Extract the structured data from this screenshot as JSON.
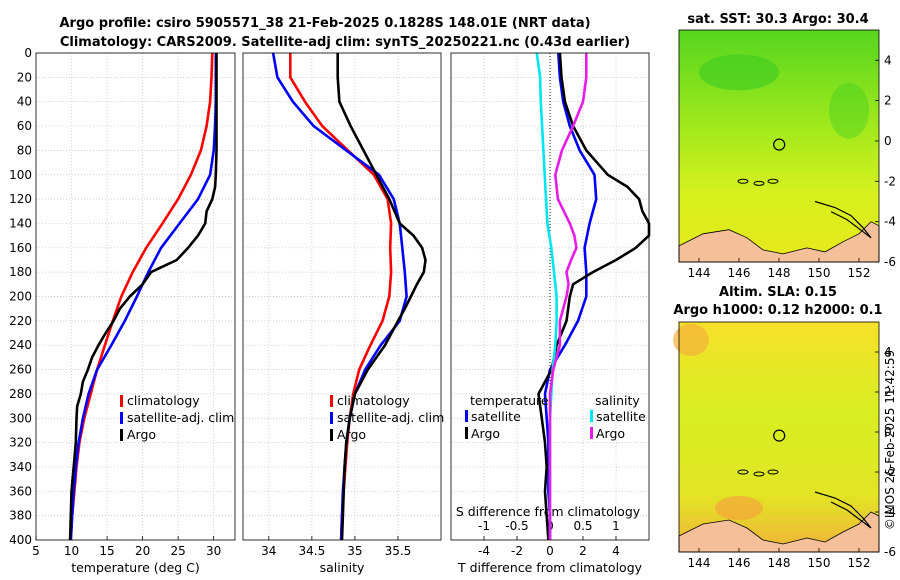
{
  "title": {
    "line1": "Argo profile: csiro 5905571_38 21-Feb-2025 0.1828S 148.01E (NRT data)",
    "line2": "Climatology: CARS2009. Satellite-adj clim: synTS_20250221.nc (0.43d earlier)"
  },
  "colors": {
    "climatology": "#ff0000",
    "satellite": "#0000ff",
    "argo": "#000000",
    "salinity_sat": "#00e5f2",
    "salinity_argo": "#e81ce8",
    "land": "#f5bf9a"
  },
  "chart_data": [
    {
      "id": "temperature",
      "type": "line",
      "xlabel": "temperature (deg C)",
      "ylabel": "",
      "xlim": [
        5,
        33
      ],
      "ylim": [
        400,
        0
      ],
      "xticks": [
        5,
        10,
        15,
        20,
        25,
        30
      ],
      "yticks": [
        0,
        20,
        40,
        60,
        80,
        100,
        120,
        140,
        160,
        180,
        200,
        220,
        240,
        260,
        280,
        300,
        320,
        340,
        360,
        380,
        400
      ],
      "grid": true,
      "legend": {
        "position": "bottom-right",
        "entries": [
          "climatology",
          "satellite-adj. clim",
          "Argo"
        ]
      },
      "series": [
        {
          "name": "climatology",
          "color": "#ff0000",
          "depth": [
            0,
            20,
            40,
            60,
            80,
            100,
            120,
            140,
            160,
            180,
            200,
            220,
            240,
            260,
            280,
            300,
            320,
            340,
            360,
            380,
            400
          ],
          "values": [
            29.8,
            29.7,
            29.5,
            29.0,
            28.2,
            26.8,
            25.0,
            22.8,
            20.5,
            18.6,
            17.0,
            15.8,
            14.7,
            13.6,
            12.7,
            11.8,
            11.1,
            10.7,
            10.4,
            10.1,
            9.9
          ]
        },
        {
          "name": "satellite-adj. clim",
          "color": "#0000ff",
          "depth": [
            0,
            20,
            40,
            60,
            80,
            100,
            120,
            140,
            160,
            180,
            200,
            220,
            240,
            260,
            280,
            300,
            320,
            340,
            360,
            380,
            400
          ],
          "values": [
            30.3,
            30.3,
            30.3,
            30.2,
            30.0,
            29.5,
            27.8,
            25.2,
            22.6,
            20.8,
            19.2,
            17.5,
            15.6,
            13.6,
            12.4,
            11.6,
            11.0,
            10.6,
            10.3,
            10.1,
            9.9
          ]
        },
        {
          "name": "Argo",
          "color": "#000000",
          "depth": [
            0,
            20,
            40,
            60,
            80,
            100,
            110,
            120,
            130,
            140,
            150,
            160,
            170,
            180,
            190,
            200,
            210,
            220,
            230,
            240,
            250,
            260,
            270,
            280,
            290,
            300,
            320,
            340,
            360,
            380,
            400
          ],
          "values": [
            30.4,
            30.4,
            30.4,
            30.4,
            30.4,
            30.3,
            30.2,
            29.8,
            29.0,
            28.8,
            27.8,
            26.4,
            24.8,
            21.2,
            20.0,
            18.2,
            16.8,
            15.9,
            14.8,
            13.8,
            12.9,
            12.3,
            11.6,
            11.3,
            10.8,
            10.7,
            10.6,
            10.3,
            10.0,
            9.9,
            9.8
          ]
        }
      ]
    },
    {
      "id": "salinity",
      "type": "line",
      "xlabel": "salinity",
      "xlim": [
        33.7,
        36.0
      ],
      "ylim": [
        400,
        0
      ],
      "xticks": [
        34,
        34.5,
        35,
        35.5
      ],
      "grid": true,
      "legend": {
        "position": "bottom-right",
        "entries": [
          "climatology",
          "satellite-adj. clim",
          "Argo"
        ]
      },
      "series": [
        {
          "name": "climatology",
          "color": "#ff0000",
          "depth": [
            0,
            20,
            40,
            60,
            80,
            100,
            120,
            140,
            160,
            180,
            200,
            220,
            240,
            260,
            280,
            300,
            320,
            340,
            360,
            380,
            400
          ],
          "values": [
            34.25,
            34.25,
            34.42,
            34.62,
            34.92,
            35.22,
            35.38,
            35.42,
            35.41,
            35.42,
            35.4,
            35.32,
            35.18,
            35.05,
            34.98,
            34.94,
            34.91,
            34.89,
            34.87,
            34.85,
            34.84
          ]
        },
        {
          "name": "satellite-adj. clim",
          "color": "#0000ff",
          "depth": [
            0,
            20,
            40,
            60,
            80,
            100,
            120,
            140,
            160,
            180,
            200,
            220,
            240,
            260,
            280,
            300,
            320,
            340,
            360,
            380,
            400
          ],
          "values": [
            34.05,
            34.1,
            34.28,
            34.52,
            34.9,
            35.28,
            35.45,
            35.52,
            35.55,
            35.58,
            35.6,
            35.52,
            35.3,
            35.12,
            35.0,
            34.94,
            34.9,
            34.88,
            34.86,
            34.85,
            34.84
          ]
        },
        {
          "name": "Argo",
          "color": "#000000",
          "depth": [
            0,
            20,
            40,
            60,
            80,
            100,
            120,
            140,
            150,
            160,
            170,
            180,
            190,
            200,
            210,
            220,
            240,
            260,
            280,
            300,
            320,
            340,
            360,
            380,
            400
          ],
          "values": [
            34.8,
            34.8,
            34.82,
            34.95,
            35.1,
            35.25,
            35.4,
            35.52,
            35.68,
            35.78,
            35.82,
            35.8,
            35.72,
            35.65,
            35.58,
            35.5,
            35.35,
            35.15,
            35.0,
            34.94,
            34.9,
            34.88,
            34.87,
            34.86,
            34.85
          ]
        }
      ]
    },
    {
      "id": "differences",
      "type": "line",
      "xlabel": "T difference from climatology",
      "top_xlabel": "S difference from climatology",
      "xlim": [
        -6,
        6
      ],
      "top_xlim": [
        -1.5,
        1.5
      ],
      "ylim": [
        400,
        0
      ],
      "xticks": [
        -4,
        -2,
        0,
        2,
        4
      ],
      "top_xticks": [
        -1,
        -0.5,
        0,
        0.5,
        1
      ],
      "top_xtick_labels": [
        "-1",
        "-0.5",
        "0",
        "0.5",
        "1"
      ],
      "grid": true,
      "legend": {
        "position": "bottom",
        "headers": [
          "temperature",
          "salinity"
        ],
        "entries": [
          "satellite",
          "Argo",
          "satellite",
          "Argo"
        ]
      },
      "series": [
        {
          "name": "temperature satellite",
          "axis": "T",
          "color": "#0000ff",
          "depth": [
            0,
            20,
            40,
            60,
            80,
            100,
            120,
            140,
            160,
            180,
            200,
            220,
            240,
            260,
            280,
            300,
            320,
            340,
            360,
            380,
            400
          ],
          "values": [
            0.5,
            0.6,
            0.8,
            1.2,
            1.8,
            2.7,
            2.8,
            2.4,
            2.1,
            2.2,
            2.2,
            1.7,
            0.9,
            0.0,
            -0.3,
            -0.2,
            -0.1,
            -0.1,
            -0.1,
            0.0,
            0.0
          ]
        },
        {
          "name": "temperature Argo",
          "axis": "T",
          "color": "#000000",
          "depth": [
            0,
            20,
            40,
            60,
            80,
            100,
            110,
            120,
            130,
            140,
            150,
            160,
            170,
            180,
            190,
            200,
            220,
            240,
            260,
            280,
            300,
            320,
            340,
            360,
            380,
            400
          ],
          "values": [
            0.6,
            0.7,
            0.9,
            1.4,
            2.2,
            3.5,
            4.7,
            5.4,
            5.6,
            6.0,
            6.0,
            5.2,
            4.0,
            2.6,
            1.4,
            1.2,
            1.0,
            0.4,
            0.1,
            -0.7,
            -0.5,
            -0.3,
            -0.2,
            -0.3,
            -0.2,
            -0.1
          ]
        },
        {
          "name": "salinity satellite",
          "axis": "S",
          "color": "#00e5f2",
          "depth": [
            0,
            20,
            40,
            60,
            80,
            100,
            120,
            140,
            160,
            180,
            200,
            220,
            240,
            260,
            280,
            300,
            320,
            340,
            360,
            380,
            400
          ],
          "values": [
            -0.2,
            -0.15,
            -0.14,
            -0.12,
            -0.1,
            -0.08,
            -0.06,
            -0.04,
            0.02,
            0.06,
            0.1,
            0.1,
            0.08,
            0.04,
            0.02,
            0.0,
            0.0,
            0.0,
            0.0,
            0.0,
            0.0
          ]
        },
        {
          "name": "salinity Argo",
          "axis": "S",
          "color": "#e81ce8",
          "depth": [
            0,
            20,
            40,
            60,
            80,
            100,
            120,
            140,
            150,
            160,
            170,
            180,
            190,
            200,
            220,
            240,
            260,
            280,
            300,
            320,
            340,
            360,
            380,
            400
          ],
          "values": [
            0.55,
            0.55,
            0.5,
            0.35,
            0.18,
            0.08,
            0.12,
            0.3,
            0.37,
            0.4,
            0.32,
            0.25,
            0.28,
            0.25,
            0.15,
            0.15,
            0.05,
            0.0,
            0.0,
            0.0,
            0.0,
            0.0,
            0.0,
            0.0
          ]
        }
      ]
    },
    {
      "id": "sst-map",
      "type": "heatmap",
      "title": "sat. SST: 30.3 Argo: 30.4",
      "xlim": [
        143,
        153
      ],
      "ylim": [
        -6,
        5.5
      ],
      "xticks": [
        144,
        146,
        148,
        150,
        152
      ],
      "yticks": [
        4,
        2,
        0,
        -2,
        -4,
        -6
      ],
      "profile_location": [
        148.01,
        -0.18
      ]
    },
    {
      "id": "sla-map",
      "type": "heatmap",
      "title": "Altim. SLA: 0.15",
      "subtitle": "Argo h1000: 0.12 h2000: 0.1",
      "xlim": [
        143,
        153
      ],
      "ylim": [
        -6,
        5.5
      ],
      "xticks": [
        144,
        146,
        148,
        150,
        152
      ],
      "yticks": [
        4,
        2,
        0,
        -2,
        -4,
        -6
      ],
      "profile_location": [
        148.01,
        -0.18
      ]
    }
  ],
  "legend_labels": {
    "climatology": "climatology",
    "satellite_adj": "satellite-adj. clim",
    "argo": "Argo",
    "temperature": "temperature",
    "salinity": "salinity",
    "satellite": "satellite"
  },
  "watermark": "©IMOS 26-Feb-2025 11:42:59"
}
